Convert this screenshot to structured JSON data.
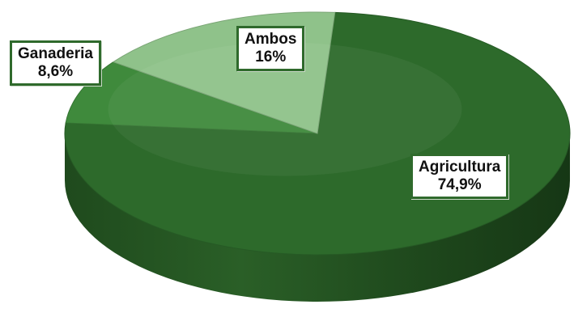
{
  "chart_data": {
    "type": "pie",
    "title": "",
    "slices": [
      {
        "label": "Agricultura",
        "value": 74.9,
        "value_label": "74,9%",
        "color": "#2d6a2b"
      },
      {
        "label": "Ganaderia",
        "value": 8.6,
        "value_label": "8,6%",
        "color": "#3f8a3c"
      },
      {
        "label": "Ambos",
        "value": 16,
        "value_label": "16%",
        "color": "#8fc28a"
      }
    ],
    "style": "3d",
    "legend": "none"
  }
}
